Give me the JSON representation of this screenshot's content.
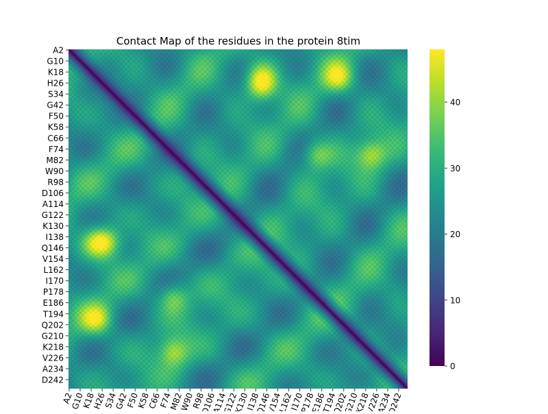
{
  "chart_data": {
    "type": "heatmap",
    "title": "Contact Map of the residues in the protein 8tim",
    "xlabel": "",
    "ylabel": "",
    "protein": "8tim",
    "tick_labels": [
      "A2",
      "G10",
      "K18",
      "H26",
      "S34",
      "G42",
      "F50",
      "K58",
      "C66",
      "F74",
      "M82",
      "W90",
      "R98",
      "D106",
      "A114",
      "G122",
      "K130",
      "I138",
      "Q146",
      "V154",
      "L162",
      "I170",
      "P178",
      "E186",
      "T194",
      "Q202",
      "G210",
      "K218",
      "V226",
      "A234",
      "D242"
    ],
    "n_residues": 247,
    "tick_step": 8,
    "value_range": [
      0,
      48
    ],
    "colorbar": {
      "ticks": [
        0,
        10,
        20,
        30,
        40
      ],
      "colormap": "viridis",
      "position": "right"
    },
    "diagonal_value": 0,
    "hotspots": [
      {
        "row": "K18",
        "col": "I138",
        "value": 46
      },
      {
        "row": "K18",
        "col": "T194",
        "value": 47
      },
      {
        "row": "H26",
        "col": "I138",
        "value": 44
      },
      {
        "row": "F74",
        "col": "P178",
        "value": 44
      },
      {
        "row": "F74",
        "col": "K218",
        "value": 46
      },
      {
        "row": "I138",
        "col": "K18",
        "value": 42
      },
      {
        "row": "T194",
        "col": "K18",
        "value": 46
      },
      {
        "row": "K218",
        "col": "F74",
        "value": 45
      },
      {
        "row": "D242",
        "col": "F74",
        "value": 44
      }
    ]
  },
  "colors": {
    "viridis_stops": [
      "#440154",
      "#482878",
      "#3e4989",
      "#31688e",
      "#26828e",
      "#1f9e89",
      "#35b779",
      "#6ece58",
      "#b5de2b",
      "#fde725"
    ]
  }
}
